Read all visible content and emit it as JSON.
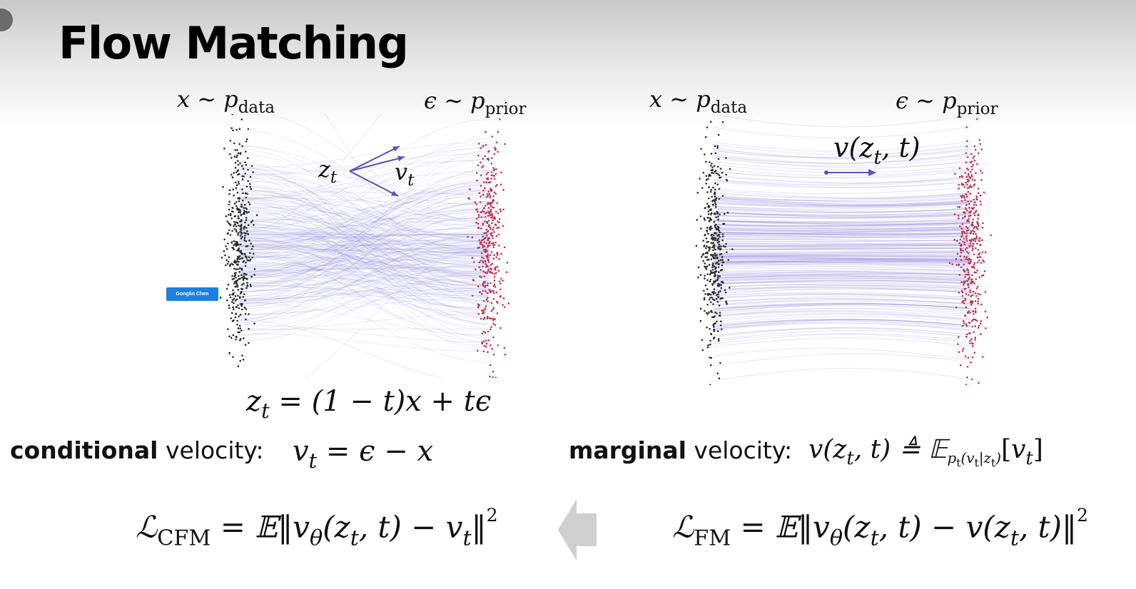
{
  "slide": {
    "title": "Flow Matching",
    "badge": "Gonglin Chen"
  },
  "left_plot": {
    "x_label_var": "x ∼ p",
    "x_label_sub": "data",
    "prior_label_var": "ϵ ∼ p",
    "prior_label_sub": "prior",
    "zt_label": "z",
    "zt_sub": "t",
    "vt_label": "v",
    "vt_sub": "t",
    "interpolation_eq": "= (1 − t)x + tϵ"
  },
  "right_plot": {
    "x_label_var": "x ∼ p",
    "x_label_sub": "data",
    "prior_label_var": "ϵ ∼ p",
    "prior_label_sub": "prior",
    "velocity_label": "v(z",
    "velocity_label_tail": ", t)"
  },
  "conditional": {
    "bold": "conditional",
    "rest": " velocity:",
    "eq": "= ϵ − x"
  },
  "marginal": {
    "bold": "marginal",
    "rest": " velocity:",
    "eq": "≜ 𝔼"
  },
  "loss_cfm": {
    "symbol": "ℒ",
    "sub": "CFM",
    "eq": "= 𝔼‖v",
    "tail": "(z",
    "tail2": ", t) − v",
    "end": "‖"
  },
  "loss_fm": {
    "symbol": "ℒ",
    "sub": "FM",
    "eq": "= 𝔼‖v",
    "tail": "(z",
    "tail2": ", t) − v(z",
    "end": ", t)‖"
  },
  "colors": {
    "data_points": "#2b2b2b",
    "prior_points": "#c0334f",
    "flow_lines": "#6f5fd6",
    "arrow": "#5a4fc8",
    "badge": "#1e7fe0"
  }
}
